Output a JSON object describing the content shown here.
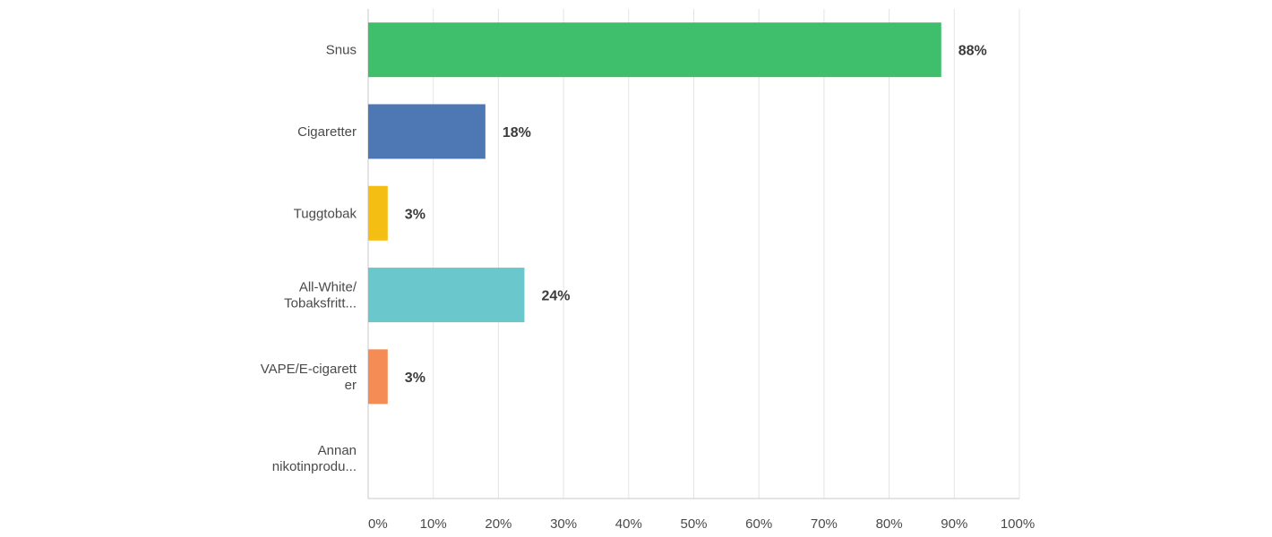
{
  "chart_data": {
    "type": "bar",
    "orientation": "horizontal",
    "categories": [
      [
        "Snus"
      ],
      [
        "Cigaretter"
      ],
      [
        "Tuggtobak"
      ],
      [
        "All-White/",
        "Tobaksfritt..."
      ],
      [
        "VAPE/E-cigarett",
        "er"
      ],
      [
        "Annan",
        "nikotinprodu..."
      ]
    ],
    "values": [
      88,
      18,
      3,
      24,
      3,
      0
    ],
    "value_labels": [
      "88%",
      "18%",
      "3%",
      "24%",
      "3%",
      ""
    ],
    "colors": [
      "#3fbf6b",
      "#4d78b4",
      "#f5be12",
      "#6ac8cc",
      "#f58c55",
      "#a8a8a8"
    ],
    "xlim": [
      0,
      100
    ],
    "x_ticks": [
      "0%",
      "10%",
      "20%",
      "30%",
      "40%",
      "50%",
      "60%",
      "70%",
      "80%",
      "90%",
      "100%"
    ],
    "grid": true,
    "title": "",
    "xlabel": "",
    "ylabel": ""
  }
}
